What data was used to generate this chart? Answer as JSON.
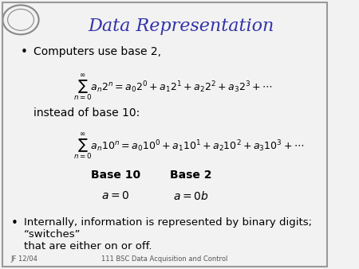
{
  "title": "Data Representation",
  "title_color": "#3333aa",
  "title_fontsize": 16,
  "background_color": "#f0f0f0",
  "bullet1": "Computers use base 2,",
  "formula1": "$\\sum_{n=0}^{\\infty} a_n 2^n = a_0 2^0 + a_1 2^1 + a_2 2^2 + a_3 2^3 + \\cdots$",
  "instead_text": "instead of base 10:",
  "formula2": "$\\sum_{n=0}^{\\infty} a_n 10^n = a_0 10^0 + a_1 10^1 + a_2 10^2 + a_3 10^3 + \\cdots$",
  "base10_label": "Base 10",
  "base2_label": "Base 2",
  "base10_val": "$a = 0$",
  "base2_val": "$a = 0b$",
  "bullet2": "Internally, information is represented by binary digits; “switches”\nthat are either on or off.",
  "footer_left": "JF 12/04",
  "footer_right": "111 BSC Data Acquisition and Control",
  "text_color": "#000000",
  "formula_color": "#000000",
  "label_color": "#000000"
}
